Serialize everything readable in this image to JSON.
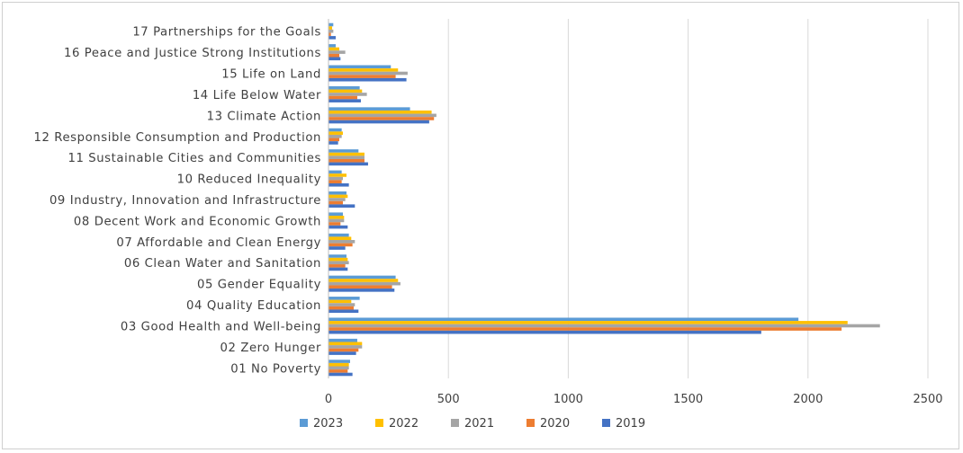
{
  "chart_data": {
    "type": "bar",
    "orientation": "horizontal",
    "title": "",
    "xlabel": "",
    "ylabel": "",
    "xlim": [
      0,
      2500
    ],
    "xticks": [
      0,
      500,
      1000,
      1500,
      2000,
      2500
    ],
    "grid": true,
    "legend_position": "bottom",
    "categories": [
      "17 Partnerships for the Goals",
      "16 Peace and Justice Strong Institutions",
      "15 Life on Land",
      "14 Life Below Water",
      "13 Climate Action",
      "12 Responsible Consumption and Production",
      "11 Sustainable Cities and Communities",
      "10 Reduced Inequality",
      "09 Industry, Innovation and Infrastructure",
      "08 Decent Work and Economic Growth",
      "07 Affordable and Clean Energy",
      "06 Clean Water and Sanitation",
      "05 Gender Equality",
      "04 Quality Education",
      "03 Good Health and Well-being",
      "02 Zero Hunger",
      "01 No Poverty"
    ],
    "series": [
      {
        "name": "2023",
        "color": "#5b9bd5",
        "values": [
          20,
          30,
          260,
          130,
          340,
          55,
          125,
          55,
          75,
          60,
          85,
          75,
          280,
          130,
          1960,
          120,
          90
        ]
      },
      {
        "name": "2022",
        "color": "#ffc000",
        "values": [
          15,
          45,
          290,
          140,
          430,
          60,
          150,
          75,
          80,
          65,
          95,
          80,
          290,
          95,
          2165,
          140,
          85
        ]
      },
      {
        "name": "2021",
        "color": "#a5a5a5",
        "values": [
          20,
          70,
          330,
          160,
          450,
          55,
          150,
          60,
          70,
          65,
          110,
          85,
          300,
          110,
          2300,
          140,
          85
        ]
      },
      {
        "name": "2020",
        "color": "#ed7d31",
        "values": [
          10,
          45,
          280,
          120,
          440,
          45,
          150,
          55,
          60,
          50,
          100,
          70,
          265,
          105,
          2140,
          125,
          80
        ]
      },
      {
        "name": "2019",
        "color": "#4472c4",
        "values": [
          30,
          50,
          325,
          135,
          420,
          40,
          165,
          85,
          110,
          80,
          70,
          80,
          275,
          125,
          1805,
          115,
          100
        ]
      }
    ],
    "legend_order": [
      "2023",
      "2022",
      "2021",
      "2020",
      "2019"
    ]
  }
}
